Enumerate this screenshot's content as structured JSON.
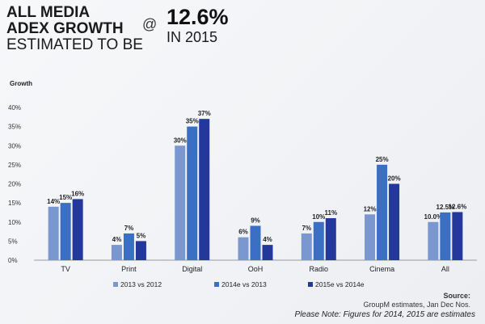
{
  "header": {
    "line1": "ALL MEDIA",
    "line2": "ADEX GROWTH",
    "line3": "ESTIMATED TO BE",
    "at": "@",
    "value": "12.6%",
    "year": "IN 2015"
  },
  "source": {
    "label": "Source:",
    "text": "GroupM estimates, Jan Dec Nos.",
    "note": "Please Note: Figures for 2014, 2015 are estimates"
  },
  "colors": {
    "s1": "#7b97cf",
    "s2": "#3a6fc4",
    "s3": "#23389a"
  },
  "chart_data": {
    "type": "bar",
    "ylabel": "Growth",
    "ylim": [
      0,
      40
    ],
    "yticks": [
      "0%",
      "5%",
      "10%",
      "15%",
      "20%",
      "25%",
      "30%",
      "35%",
      "40%"
    ],
    "categories": [
      "TV",
      "Print",
      "Digital",
      "OoH",
      "Radio",
      "Cinema",
      "All"
    ],
    "series": [
      {
        "name": "2013 vs 2012",
        "values": [
          14,
          4,
          30,
          6,
          7,
          12,
          10.0
        ],
        "labels": [
          "14%",
          "4%",
          "30%",
          "6%",
          "7%",
          "12%",
          "10.0%"
        ]
      },
      {
        "name": "2014e vs 2013",
        "values": [
          15,
          7,
          35,
          9,
          10,
          25,
          12.5
        ],
        "labels": [
          "15%",
          "7%",
          "35%",
          "9%",
          "10%",
          "25%",
          "12.5%"
        ]
      },
      {
        "name": "2015e vs 2014e",
        "values": [
          16,
          5,
          37,
          4,
          11,
          20,
          12.6
        ],
        "labels": [
          "16%",
          "5%",
          "37%",
          "4%",
          "11%",
          "20%",
          "12.6%"
        ]
      }
    ],
    "legend": "bottom",
    "grid": false
  }
}
